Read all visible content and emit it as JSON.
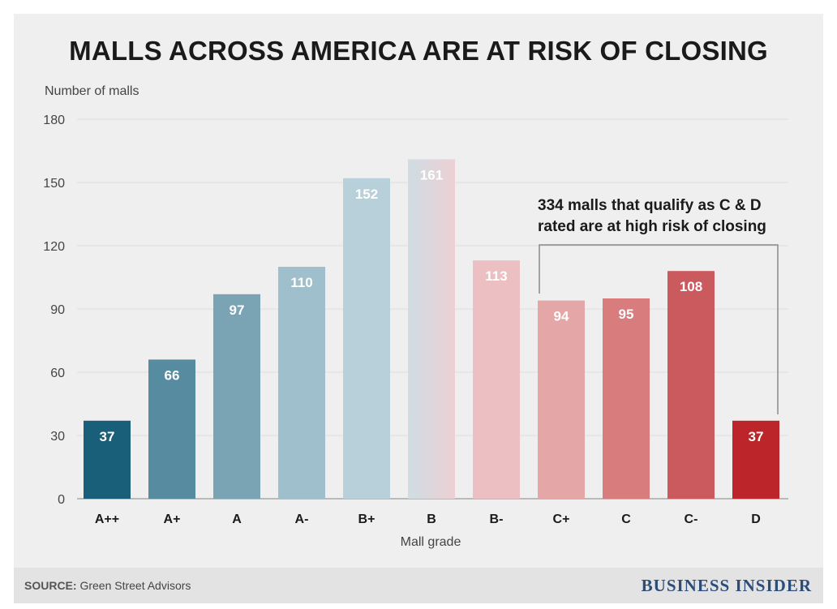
{
  "title": "MALLS ACROSS AMERICA ARE AT RISK OF CLOSING",
  "footer": {
    "source_prefix": "SOURCE:",
    "source_text": " Green Street Advisors",
    "brand": "BUSINESS INSIDER"
  },
  "chart_data": {
    "type": "bar",
    "title": "MALLS ACROSS AMERICA ARE AT RISK OF CLOSING",
    "xlabel": "Mall grade",
    "ylabel": "Number of malls",
    "categories": [
      "A++",
      "A+",
      "A",
      "A-",
      "B+",
      "B",
      "B-",
      "C+",
      "C",
      "C-",
      "D"
    ],
    "values": [
      37,
      66,
      97,
      110,
      152,
      161,
      113,
      94,
      95,
      108,
      37
    ],
    "colors": [
      "#1a5f7a",
      "#568ba0",
      "#7aa3b4",
      "#a0bfcc",
      "#b8d0da",
      "#e4d6da",
      "#ecbfc2",
      "#e5a6a8",
      "#d97c7e",
      "#cb5a5e",
      "#bc2529"
    ],
    "ylim": [
      0,
      180
    ],
    "yticks": [
      0,
      30,
      60,
      90,
      120,
      150,
      180
    ],
    "grid": true,
    "annotation": {
      "lines": [
        "334 malls that qualify as C & D",
        "rated are at high risk of closing"
      ],
      "bracket_from": "C+",
      "bracket_to": "D"
    }
  }
}
